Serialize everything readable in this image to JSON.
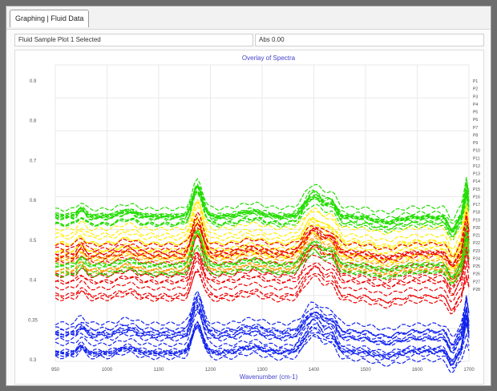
{
  "tabs": [
    {
      "label": "Graphing | Fluid Data"
    }
  ],
  "header": {
    "left_field": "Fluid Sample Plot 1 Selected",
    "right_field": "Abs 0.00"
  },
  "colors": {
    "green": "#22dd00",
    "yellow": "#ffee00",
    "orange": "#ff9900",
    "red": "#ee0000",
    "blue": "#1122ee",
    "grid": "#e9e9e9",
    "title": "#4444cc"
  },
  "chart_data": {
    "type": "line",
    "title": "Overlay of Spectra",
    "xlabel": "Wavenumber (cm-1)",
    "ylabel": "",
    "xlim": [
      950,
      1750
    ],
    "ylim": [
      0.3,
      1.0
    ],
    "x_ticks": [
      "950",
      "1000",
      "1100",
      "1200",
      "1300",
      "1400",
      "1500",
      "1600",
      "1700"
    ],
    "y_ticks": [
      "0.9",
      "0.8",
      "0.7",
      "0.6",
      "0.5",
      "0.4",
      "0.35",
      "0.3"
    ],
    "groups": [
      {
        "color": "green",
        "count": 12,
        "base_range": [
          0.62,
          0.66
        ]
      },
      {
        "color": "yellow",
        "count": 10,
        "base_range": [
          0.54,
          0.62
        ]
      },
      {
        "color": "orange",
        "count": 6,
        "base_range": [
          0.51,
          0.56
        ]
      },
      {
        "color": "red",
        "count": 14,
        "base_range": [
          0.44,
          0.58
        ]
      },
      {
        "color": "green",
        "count": 5,
        "base_range": [
          0.5,
          0.53
        ]
      },
      {
        "color": "blue",
        "count": 16,
        "base_range": [
          0.31,
          0.4
        ]
      }
    ],
    "right_labels": [
      "P1",
      "P2",
      "P3",
      "P4",
      "P5",
      "P6",
      "P7",
      "P8",
      "P9",
      "P10",
      "P11",
      "P12",
      "P13",
      "P14",
      "P15",
      "P16",
      "P17",
      "P18",
      "P19",
      "P20",
      "P21",
      "P22",
      "P23",
      "P24",
      "P25",
      "P26",
      "P27",
      "P28"
    ]
  }
}
